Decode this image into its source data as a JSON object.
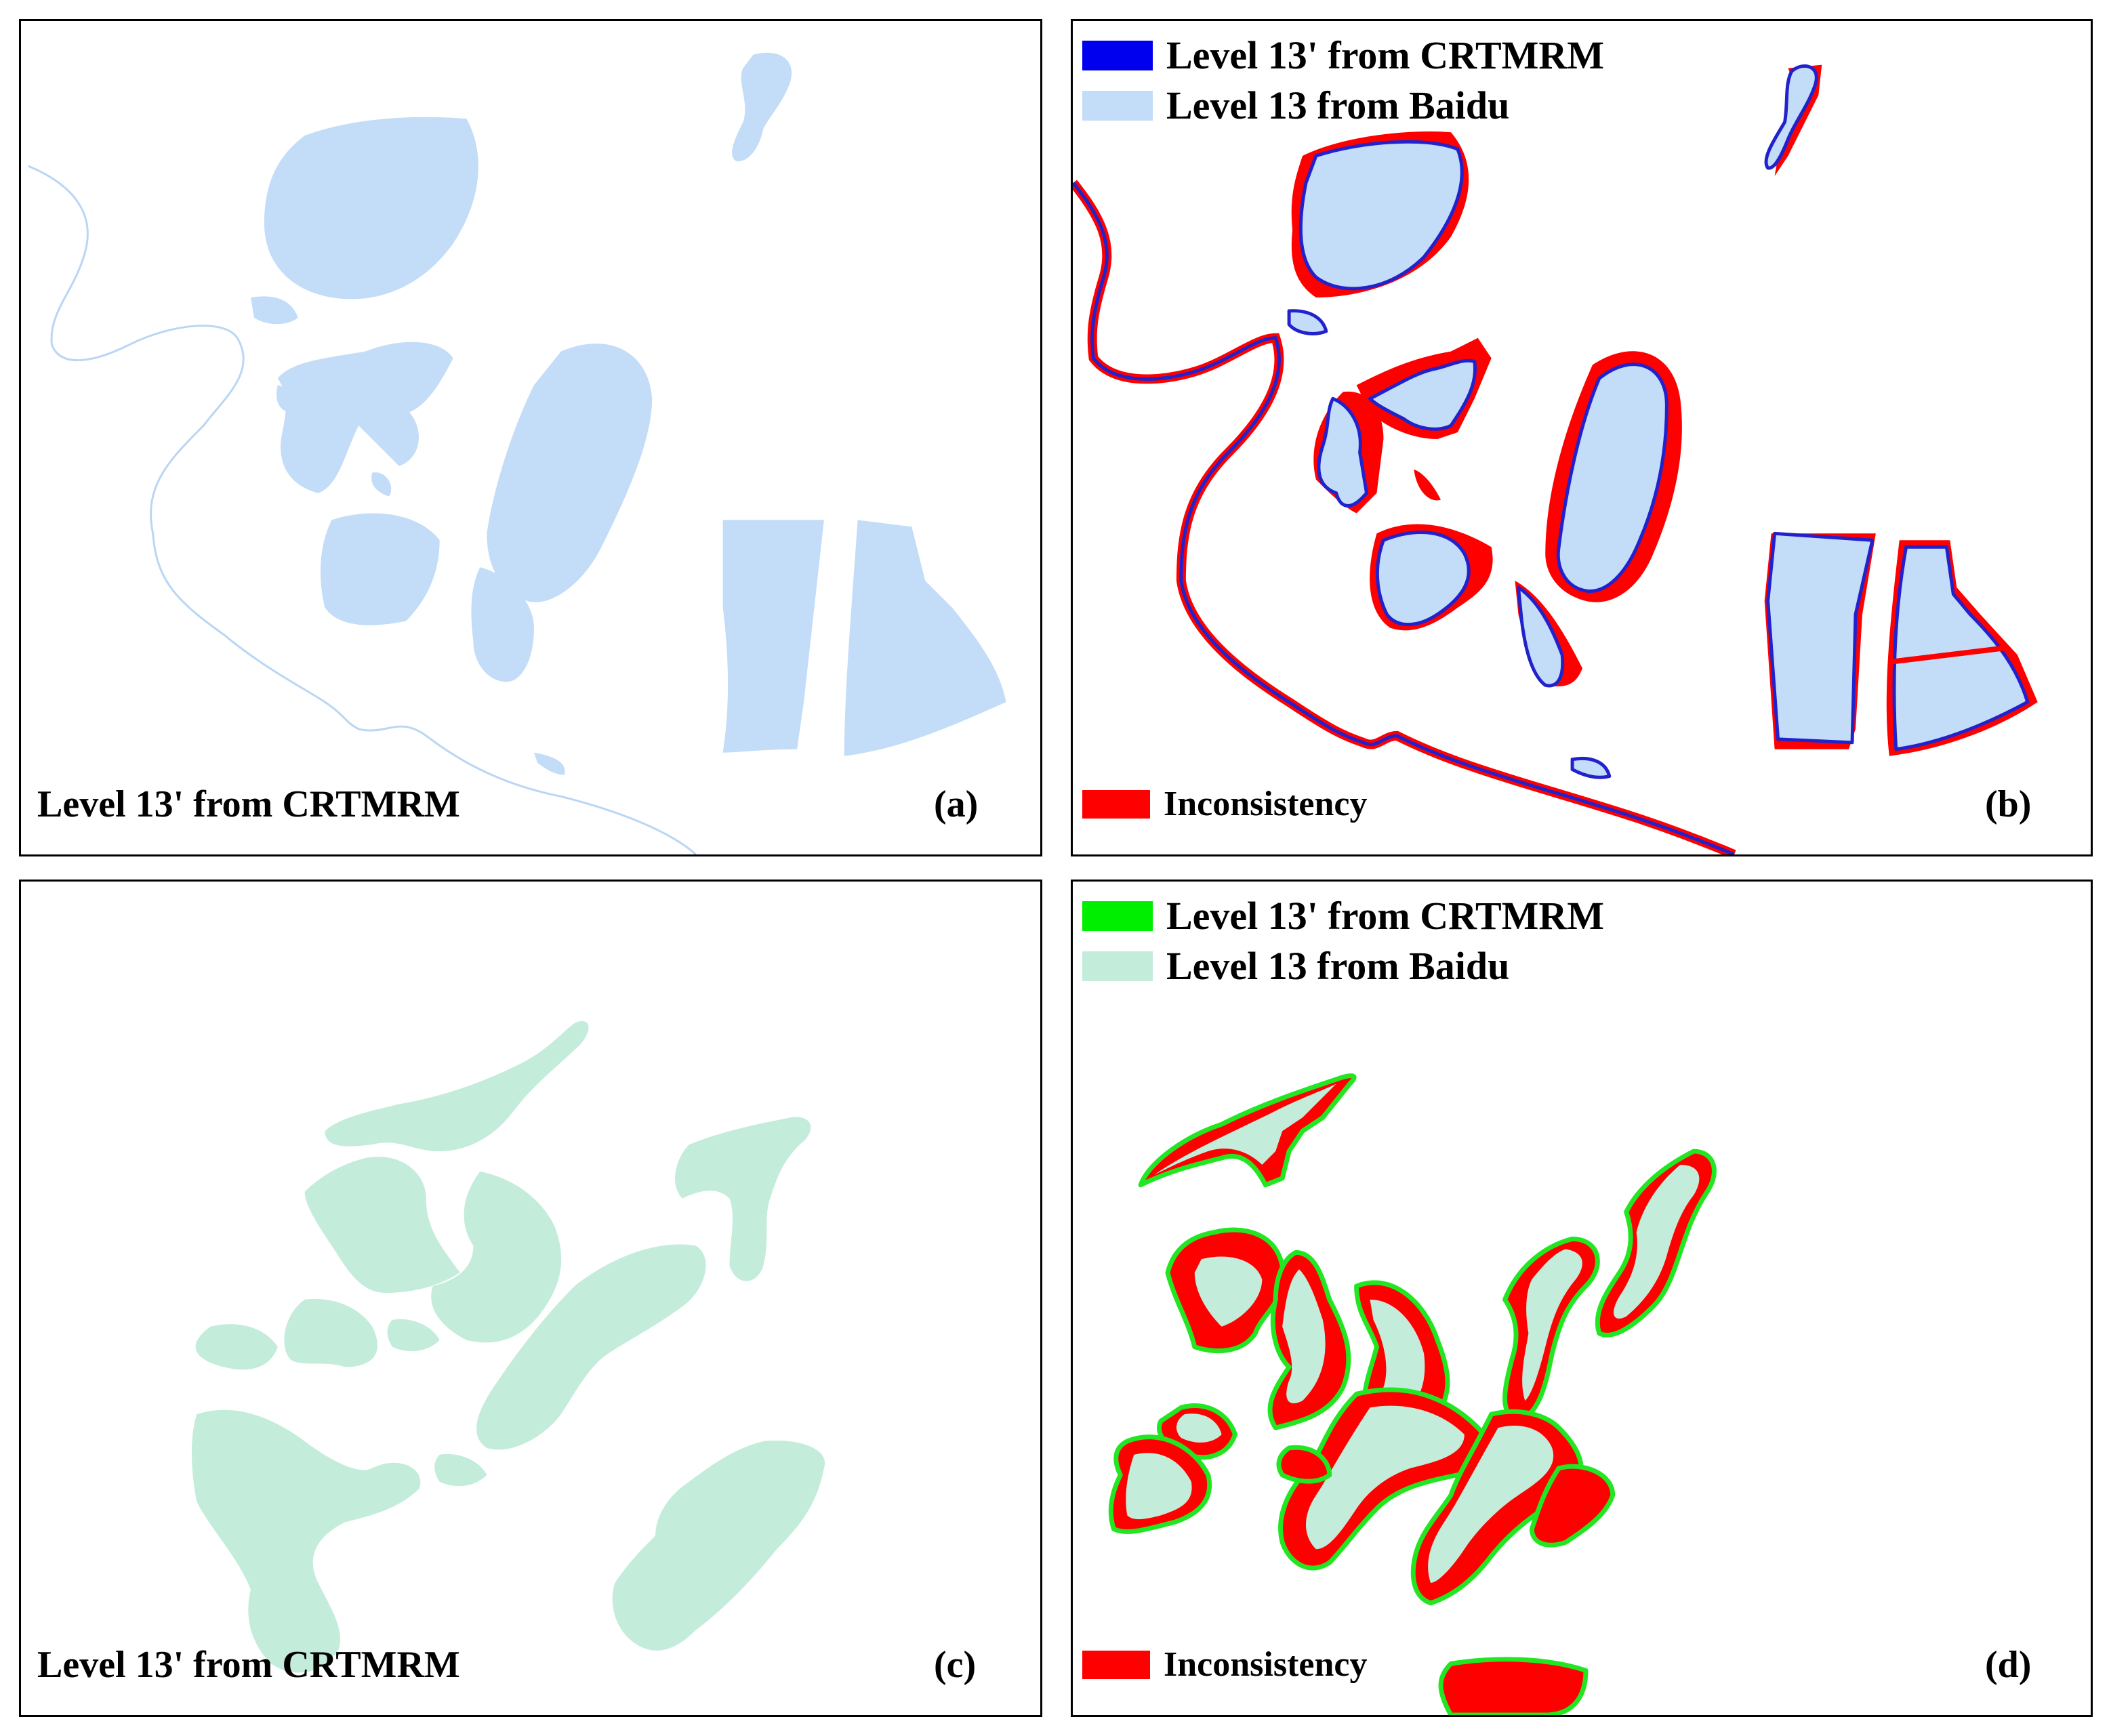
{
  "colors": {
    "water_fill": "#c3dcf7",
    "water_outline": "#2222cc",
    "veg_fill": "#c4ecdb",
    "veg_outline": "#22e622",
    "inconsistency": "#ff0000",
    "river_line": "#b9d6f4"
  },
  "panels": {
    "a": {
      "label": "Level 13' from CRTMRM",
      "id": "(a)"
    },
    "b": {
      "id": "(b)",
      "legend": [
        {
          "label": "Level 13' from CRTMRM",
          "swatch": "outline-blue"
        },
        {
          "label": "Level 13 from Baidu",
          "swatch": "fill-lightblue"
        }
      ],
      "inconsistency_label": "Inconsistency"
    },
    "c": {
      "label": "Level 13' from CRTMRM",
      "id": "(c)"
    },
    "d": {
      "id": "(d)",
      "legend": [
        {
          "label": "Level 13' from CRTMRM",
          "swatch": "outline-green"
        },
        {
          "label": "Level 13 from Baidu",
          "swatch": "fill-lightgreen"
        }
      ],
      "inconsistency_label": "Inconsistency"
    }
  }
}
